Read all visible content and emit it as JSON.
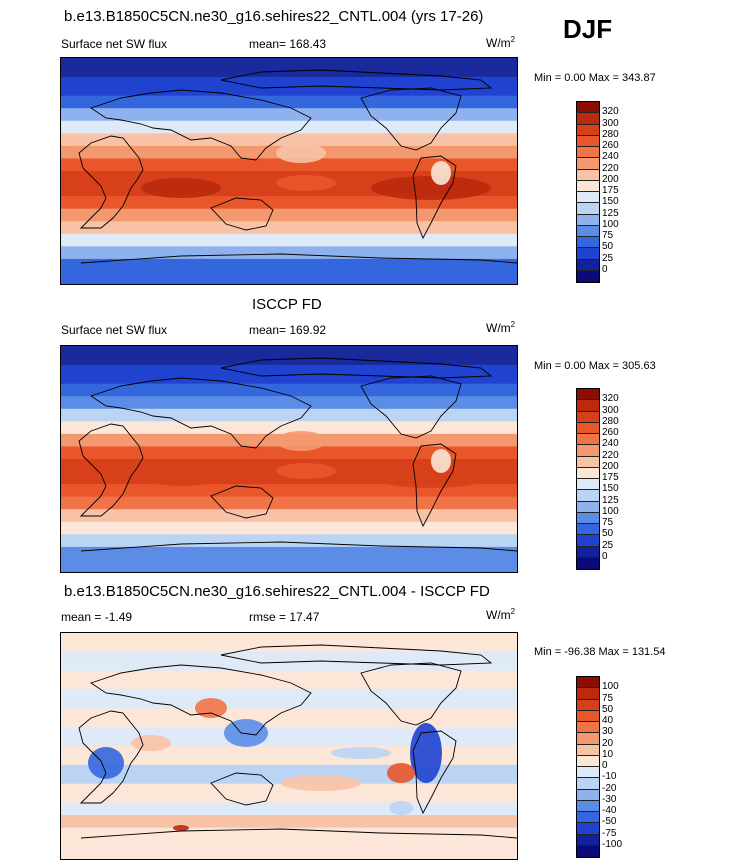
{
  "season": "DJF",
  "panels": [
    {
      "title": "b.e13.B1850C5CN.ne30_g16.sehires22_CNTL.004 (yrs 17-26)",
      "left_label": "Surface net SW flux",
      "center_label": "mean= 168.43",
      "units": "W/m",
      "units_sup": "2",
      "minmax": "Min =   0.00 Max = 343.87",
      "colorbar_labels": [
        "320",
        "300",
        "280",
        "260",
        "240",
        "220",
        "200",
        "175",
        "150",
        "125",
        "100",
        "75",
        "50",
        "25",
        "0"
      ],
      "colorbar_colors": [
        "#8b0d05",
        "#bb2a0d",
        "#d8401b",
        "#e8562a",
        "#f07448",
        "#f49870",
        "#f8c2a6",
        "#fbe6d8",
        "#dfeaf8",
        "#bcd4f4",
        "#8fb2ee",
        "#5b8de6",
        "#3466de",
        "#1f43d0",
        "#1320a0",
        "#0a0a7a"
      ],
      "bands": [
        {
          "lat": 90,
          "color": "#1a2a9c"
        },
        {
          "lat": 75,
          "color": "#1f43d0"
        },
        {
          "lat": 60,
          "color": "#3466de"
        },
        {
          "lat": 50,
          "color": "#8fb2ee"
        },
        {
          "lat": 40,
          "color": "#dfeaf8"
        },
        {
          "lat": 30,
          "color": "#f8c2a6"
        },
        {
          "lat": 20,
          "color": "#f49870"
        },
        {
          "lat": 10,
          "color": "#e8562a"
        },
        {
          "lat": 0,
          "color": "#d8401b"
        },
        {
          "lat": -10,
          "color": "#d8401b"
        },
        {
          "lat": -20,
          "color": "#e8562a"
        },
        {
          "lat": -30,
          "color": "#f49870"
        },
        {
          "lat": -40,
          "color": "#f8c2a6"
        },
        {
          "lat": -50,
          "color": "#dfeaf8"
        },
        {
          "lat": -60,
          "color": "#8fb2ee"
        },
        {
          "lat": -70,
          "color": "#3466de"
        },
        {
          "lat": -90,
          "color": "#3466de"
        }
      ]
    },
    {
      "title": "ISCCP FD",
      "left_label": "Surface net SW flux",
      "center_label": "mean= 169.92",
      "units": "W/m",
      "units_sup": "2",
      "minmax": "Min =   0.00 Max = 305.63",
      "colorbar_labels": [
        "320",
        "300",
        "280",
        "260",
        "240",
        "220",
        "200",
        "175",
        "150",
        "125",
        "100",
        "75",
        "50",
        "25",
        "0"
      ],
      "colorbar_colors": [
        "#8b0d05",
        "#bb2a0d",
        "#d8401b",
        "#e8562a",
        "#f07448",
        "#f49870",
        "#f8c2a6",
        "#fbe6d8",
        "#dfeaf8",
        "#bcd4f4",
        "#8fb2ee",
        "#5b8de6",
        "#3466de",
        "#1f43d0",
        "#1320a0",
        "#0a0a7a"
      ],
      "bands": [
        {
          "lat": 90,
          "color": "#1a2a9c"
        },
        {
          "lat": 75,
          "color": "#1f43d0"
        },
        {
          "lat": 60,
          "color": "#3466de"
        },
        {
          "lat": 50,
          "color": "#5b8de6"
        },
        {
          "lat": 40,
          "color": "#bcd4f4"
        },
        {
          "lat": 30,
          "color": "#fbe6d8"
        },
        {
          "lat": 20,
          "color": "#f49870"
        },
        {
          "lat": 10,
          "color": "#e8562a"
        },
        {
          "lat": 0,
          "color": "#d8401b"
        },
        {
          "lat": -10,
          "color": "#d8401b"
        },
        {
          "lat": -20,
          "color": "#e8562a"
        },
        {
          "lat": -30,
          "color": "#f07448"
        },
        {
          "lat": -40,
          "color": "#f8c2a6"
        },
        {
          "lat": -50,
          "color": "#fbe6d8"
        },
        {
          "lat": -60,
          "color": "#bcd4f4"
        },
        {
          "lat": -70,
          "color": "#5b8de6"
        },
        {
          "lat": -90,
          "color": "#3466de"
        }
      ]
    },
    {
      "title": "b.e13.B1850C5CN.ne30_g16.sehires22_CNTL.004 - ISCCP FD",
      "left_label": "mean =  -1.49",
      "center_label": "rmse =  17.47",
      "units": "W/m",
      "units_sup": "2",
      "minmax": "Min = -96.38 Max = 131.54",
      "colorbar_labels": [
        "100",
        "75",
        "50",
        "40",
        "30",
        "20",
        "10",
        "0",
        "-10",
        "-20",
        "-30",
        "-40",
        "-50",
        "-75",
        "-100"
      ],
      "colorbar_colors": [
        "#8b0d05",
        "#bb2a0d",
        "#d8401b",
        "#e8562a",
        "#f07448",
        "#f49870",
        "#f8c2a6",
        "#fbe6d8",
        "#dfeaf8",
        "#bcd4f4",
        "#8fb2ee",
        "#5b8de6",
        "#3466de",
        "#1f43d0",
        "#1320a0",
        "#0a0a7a"
      ],
      "bands": [
        {
          "lat": 90,
          "color": "#fbe6d8"
        },
        {
          "lat": 75,
          "color": "#dfeaf8"
        },
        {
          "lat": 60,
          "color": "#fbe6d8"
        },
        {
          "lat": 45,
          "color": "#dfeaf8"
        },
        {
          "lat": 30,
          "color": "#fbe6d8"
        },
        {
          "lat": 15,
          "color": "#dfeaf8"
        },
        {
          "lat": 0,
          "color": "#fbe6d8"
        },
        {
          "lat": -15,
          "color": "#bcd4f4"
        },
        {
          "lat": -30,
          "color": "#fbe6d8"
        },
        {
          "lat": -45,
          "color": "#dfeaf8"
        },
        {
          "lat": -55,
          "color": "#f8c2a6"
        },
        {
          "lat": -65,
          "color": "#fbe6d8"
        },
        {
          "lat": -90,
          "color": "#dfeaf8"
        }
      ]
    }
  ]
}
